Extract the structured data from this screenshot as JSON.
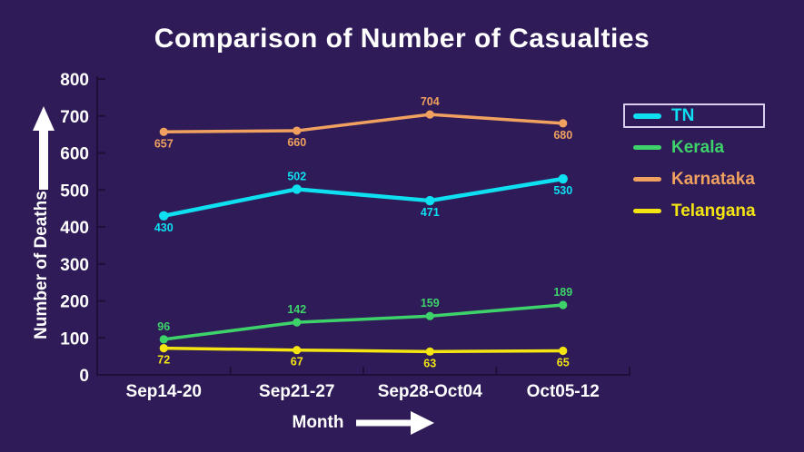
{
  "chart_data": {
    "type": "line",
    "title": "Comparison of Number of Casualties",
    "categories": [
      "Sep14-20",
      "Sep21-27",
      "Sep28-Oct04",
      "Oct05-12"
    ],
    "series": [
      {
        "name": "TN",
        "color": "#0ee0f2",
        "values": [
          430,
          502,
          471,
          530
        ],
        "label_positions": [
          "below",
          "above",
          "below",
          "below"
        ],
        "highlighted": true
      },
      {
        "name": "Kerala",
        "color": "#3ed36a",
        "values": [
          96,
          142,
          159,
          189
        ],
        "label_positions": [
          "above",
          "above",
          "above",
          "above"
        ],
        "highlighted": false
      },
      {
        "name": "Karnataka",
        "color": "#f0a160",
        "values": [
          657,
          660,
          704,
          680
        ],
        "label_positions": [
          "below",
          "below",
          "above",
          "below"
        ],
        "highlighted": false
      },
      {
        "name": "Telangana",
        "color": "#f3e412",
        "values": [
          72,
          67,
          63,
          65
        ],
        "label_positions": [
          "below",
          "below",
          "below",
          "below"
        ],
        "highlighted": false
      }
    ],
    "xlabel": "Month",
    "ylabel": "Number of Deaths",
    "ylim": [
      0,
      800
    ],
    "ytick_step": 100,
    "grid": false,
    "legend_position": "right",
    "legend_highlighted_entry": "TN"
  },
  "colors": {
    "background": "#2e1b57",
    "axis_line": "#1c1038",
    "text": "#ffffff",
    "legend_highlight_border": "#d8d0ec"
  }
}
